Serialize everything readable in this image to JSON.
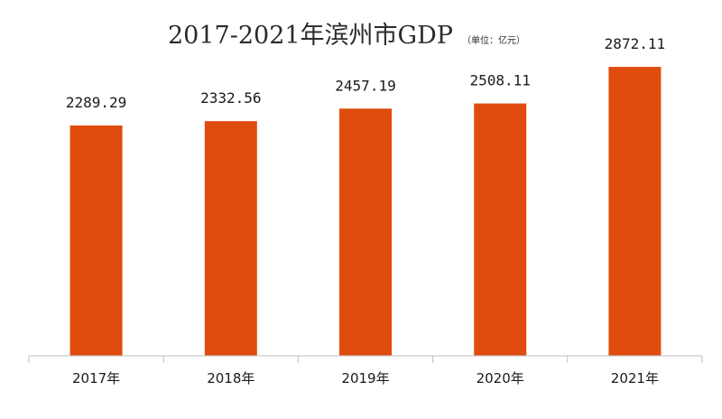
{
  "chart_data": {
    "type": "bar",
    "title": "2017-2021年滨州市GDP",
    "unit_note": "（单位：亿元）",
    "categories": [
      "2017年",
      "2018年",
      "2019年",
      "2020年",
      "2021年"
    ],
    "values": [
      2289.29,
      2332.56,
      2457.19,
      2508.11,
      2872.11
    ],
    "value_labels": [
      "2289.29",
      "2332.56",
      "2457.19",
      "2508.11",
      "2872.11"
    ],
    "ylim": [
      0,
      3200
    ],
    "grid": false,
    "legend": "none",
    "bar_color": "#E04C0E",
    "axis_color": "#BFBFBF"
  }
}
